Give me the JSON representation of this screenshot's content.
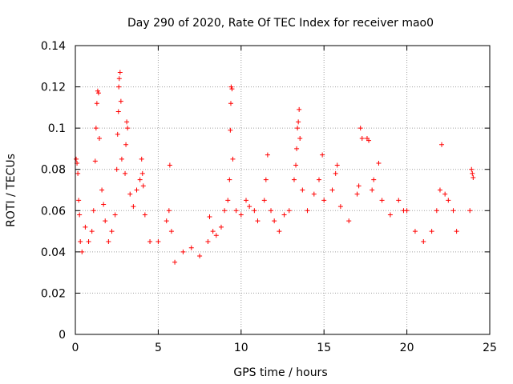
{
  "chart_data": {
    "type": "scatter",
    "title": "Day 290 of 2020, Rate Of TEC Index for receiver mao0",
    "xlabel": "GPS time / hours",
    "ylabel": "ROTI / TECUs",
    "xlim": [
      0,
      25
    ],
    "ylim": [
      0,
      0.14
    ],
    "xticks": [
      0,
      5,
      10,
      15,
      20,
      25
    ],
    "xtick_labels": [
      "0",
      "5",
      "10",
      "15",
      "20",
      "25"
    ],
    "yticks": [
      0,
      0.02,
      0.04,
      0.06,
      0.08,
      0.1,
      0.12,
      0.14
    ],
    "ytick_labels": [
      "0",
      "0.02",
      "0.04",
      "0.06",
      "0.08",
      "0.1",
      "0.12",
      "0.14"
    ],
    "grid": true,
    "marker": "+",
    "color": "#ff0000",
    "series": [
      {
        "points": [
          [
            0.05,
            0.085
          ],
          [
            0.1,
            0.083
          ],
          [
            0.15,
            0.078
          ],
          [
            0.2,
            0.065
          ],
          [
            0.25,
            0.058
          ],
          [
            0.3,
            0.045
          ],
          [
            0.4,
            0.04
          ],
          [
            0.6,
            0.052
          ],
          [
            0.8,
            0.045
          ],
          [
            1.0,
            0.05
          ],
          [
            1.1,
            0.06
          ],
          [
            1.2,
            0.084
          ],
          [
            1.25,
            0.1
          ],
          [
            1.3,
            0.112
          ],
          [
            1.35,
            0.118
          ],
          [
            1.4,
            0.117
          ],
          [
            1.45,
            0.095
          ],
          [
            1.6,
            0.07
          ],
          [
            1.7,
            0.063
          ],
          [
            1.8,
            0.055
          ],
          [
            2.0,
            0.045
          ],
          [
            2.2,
            0.05
          ],
          [
            2.4,
            0.058
          ],
          [
            2.5,
            0.08
          ],
          [
            2.55,
            0.097
          ],
          [
            2.6,
            0.108
          ],
          [
            2.62,
            0.12
          ],
          [
            2.65,
            0.124
          ],
          [
            2.7,
            0.127
          ],
          [
            2.75,
            0.113
          ],
          [
            2.8,
            0.085
          ],
          [
            3.0,
            0.078
          ],
          [
            3.05,
            0.092
          ],
          [
            3.1,
            0.103
          ],
          [
            3.15,
            0.1
          ],
          [
            3.3,
            0.068
          ],
          [
            3.5,
            0.062
          ],
          [
            3.7,
            0.07
          ],
          [
            3.9,
            0.075
          ],
          [
            4.0,
            0.085
          ],
          [
            4.05,
            0.078
          ],
          [
            4.1,
            0.072
          ],
          [
            4.2,
            0.058
          ],
          [
            4.5,
            0.045
          ],
          [
            5.0,
            0.045
          ],
          [
            5.5,
            0.055
          ],
          [
            5.65,
            0.06
          ],
          [
            5.7,
            0.082
          ],
          [
            5.8,
            0.05
          ],
          [
            6.0,
            0.035
          ],
          [
            6.5,
            0.04
          ],
          [
            7.0,
            0.042
          ],
          [
            7.5,
            0.038
          ],
          [
            8.0,
            0.045
          ],
          [
            8.1,
            0.057
          ],
          [
            8.3,
            0.05
          ],
          [
            8.5,
            0.048
          ],
          [
            8.8,
            0.052
          ],
          [
            9.0,
            0.06
          ],
          [
            9.2,
            0.065
          ],
          [
            9.3,
            0.075
          ],
          [
            9.35,
            0.099
          ],
          [
            9.38,
            0.112
          ],
          [
            9.4,
            0.12
          ],
          [
            9.45,
            0.119
          ],
          [
            9.5,
            0.085
          ],
          [
            9.7,
            0.06
          ],
          [
            10.0,
            0.058
          ],
          [
            10.3,
            0.065
          ],
          [
            10.5,
            0.062
          ],
          [
            10.8,
            0.06
          ],
          [
            11.0,
            0.055
          ],
          [
            11.4,
            0.065
          ],
          [
            11.5,
            0.075
          ],
          [
            11.6,
            0.087
          ],
          [
            11.8,
            0.06
          ],
          [
            12.0,
            0.055
          ],
          [
            12.3,
            0.05
          ],
          [
            12.6,
            0.058
          ],
          [
            12.9,
            0.06
          ],
          [
            13.2,
            0.075
          ],
          [
            13.3,
            0.082
          ],
          [
            13.35,
            0.09
          ],
          [
            13.4,
            0.1
          ],
          [
            13.45,
            0.103
          ],
          [
            13.5,
            0.109
          ],
          [
            13.55,
            0.095
          ],
          [
            13.7,
            0.07
          ],
          [
            14.0,
            0.06
          ],
          [
            14.4,
            0.068
          ],
          [
            14.7,
            0.075
          ],
          [
            14.9,
            0.087
          ],
          [
            15.0,
            0.065
          ],
          [
            15.5,
            0.07
          ],
          [
            15.7,
            0.078
          ],
          [
            15.8,
            0.082
          ],
          [
            16.0,
            0.062
          ],
          [
            16.5,
            0.055
          ],
          [
            17.0,
            0.068
          ],
          [
            17.1,
            0.072
          ],
          [
            17.2,
            0.1
          ],
          [
            17.3,
            0.095
          ],
          [
            17.6,
            0.095
          ],
          [
            17.7,
            0.094
          ],
          [
            17.9,
            0.07
          ],
          [
            18.0,
            0.075
          ],
          [
            18.3,
            0.083
          ],
          [
            18.5,
            0.065
          ],
          [
            19.0,
            0.058
          ],
          [
            19.5,
            0.065
          ],
          [
            19.8,
            0.06
          ],
          [
            20.0,
            0.06
          ],
          [
            20.5,
            0.05
          ],
          [
            21.0,
            0.045
          ],
          [
            21.5,
            0.05
          ],
          [
            21.8,
            0.06
          ],
          [
            22.0,
            0.07
          ],
          [
            22.1,
            0.092
          ],
          [
            22.3,
            0.068
          ],
          [
            22.5,
            0.065
          ],
          [
            22.8,
            0.06
          ],
          [
            23.0,
            0.05
          ],
          [
            23.8,
            0.06
          ],
          [
            23.9,
            0.08
          ],
          [
            23.95,
            0.078
          ],
          [
            24.0,
            0.076
          ]
        ]
      }
    ]
  }
}
